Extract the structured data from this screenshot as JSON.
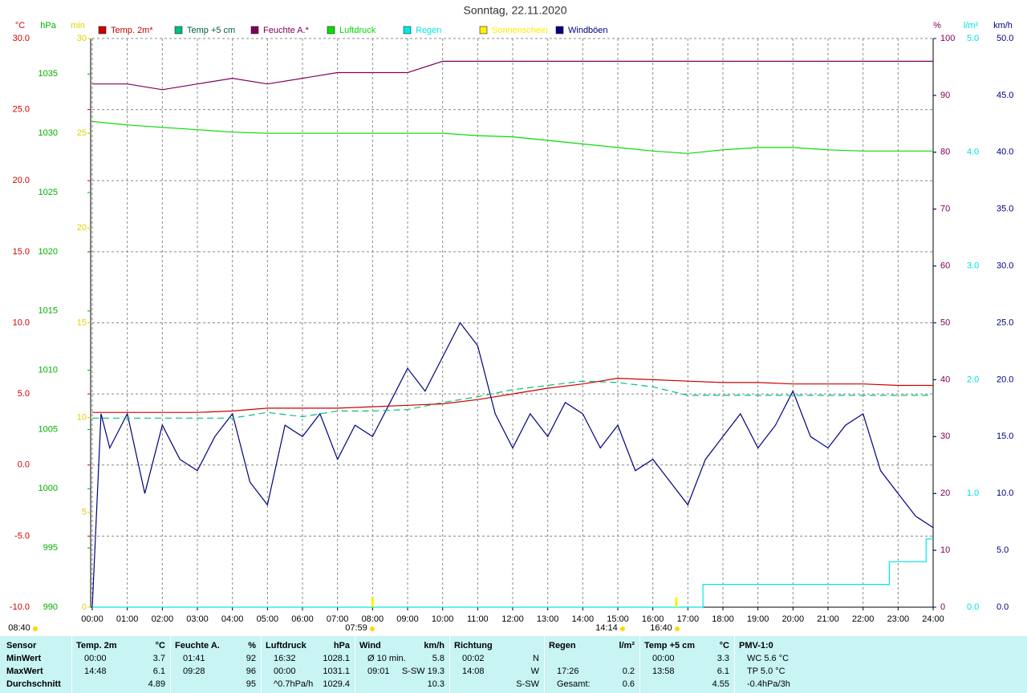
{
  "chart_data": {
    "type": "line",
    "title": "Sonntag, 22.11.2020",
    "xlim": [
      0,
      24
    ],
    "xticks": [
      {
        "value": 0,
        "label": "00:00"
      },
      {
        "value": 1,
        "label": "01:00"
      },
      {
        "value": 2,
        "label": "02:00"
      },
      {
        "value": 3,
        "label": "03:00"
      },
      {
        "value": 4,
        "label": "04:00"
      },
      {
        "value": 5,
        "label": "05:00"
      },
      {
        "value": 6,
        "label": "06:00"
      },
      {
        "value": 7,
        "label": "07:00"
      },
      {
        "value": 8,
        "label": "08:00"
      },
      {
        "value": 9,
        "label": "09:00"
      },
      {
        "value": 10,
        "label": "10:00"
      },
      {
        "value": 11,
        "label": "11:00"
      },
      {
        "value": 12,
        "label": "12:00"
      },
      {
        "value": 13,
        "label": "13:00"
      },
      {
        "value": 14,
        "label": "14:00"
      },
      {
        "value": 15,
        "label": "15:00"
      },
      {
        "value": 16,
        "label": "16:00"
      },
      {
        "value": 17,
        "label": "17:00"
      },
      {
        "value": 18,
        "label": "18:00"
      },
      {
        "value": 19,
        "label": "19:00"
      },
      {
        "value": 20,
        "label": "20:00"
      },
      {
        "value": 21,
        "label": "21:00"
      },
      {
        "value": 22,
        "label": "22:00"
      },
      {
        "value": 23,
        "label": "23:00"
      },
      {
        "value": 24,
        "label": "24:00"
      }
    ],
    "grid": true,
    "axes": [
      {
        "unit": "°C",
        "color": "#d00000",
        "side": "left",
        "lim": [
          -10,
          30
        ],
        "ticks": [
          {
            "value": -10,
            "label": "-10.0"
          },
          {
            "value": -5,
            "label": "-5.0"
          },
          {
            "value": 0,
            "label": "0.0"
          },
          {
            "value": 5,
            "label": "5.0"
          },
          {
            "value": 10,
            "label": "10.0"
          },
          {
            "value": 15,
            "label": "15.0"
          },
          {
            "value": 20,
            "label": "20.0"
          },
          {
            "value": 25,
            "label": "25.0"
          },
          {
            "value": 30,
            "label": "30.0"
          }
        ]
      },
      {
        "unit": "hPa",
        "color": "#00b000",
        "side": "left",
        "lim": [
          990,
          1038
        ],
        "ticks": [
          990,
          995,
          1000,
          1005,
          1010,
          1015,
          1020,
          1025,
          1030,
          1035
        ]
      },
      {
        "unit": "min",
        "color": "#e0d000",
        "side": "left",
        "lim": [
          0,
          30
        ],
        "ticks": [
          0,
          5,
          10,
          15,
          20,
          25,
          30
        ]
      },
      {
        "unit": "%",
        "color": "#800060",
        "side": "right",
        "lim": [
          0,
          100
        ],
        "ticks": [
          0,
          10,
          20,
          30,
          40,
          50,
          60,
          70,
          80,
          90,
          100
        ]
      },
      {
        "unit": "l/m²",
        "color": "#00e0e0",
        "side": "right",
        "lim": [
          0,
          5
        ],
        "ticks": [
          {
            "value": 0,
            "label": "0.0"
          },
          {
            "value": 1,
            "label": "1.0"
          },
          {
            "value": 2,
            "label": "2.0"
          },
          {
            "value": 3,
            "label": "3.0"
          },
          {
            "value": 4,
            "label": "4.0"
          },
          {
            "value": 5,
            "label": "5.0"
          }
        ]
      },
      {
        "unit": "km/h",
        "color": "#000080",
        "side": "right",
        "lim": [
          0,
          50
        ],
        "ticks": [
          {
            "value": 0,
            "label": "0.0"
          },
          {
            "value": 5,
            "label": "5.0"
          },
          {
            "value": 10,
            "label": "10.0"
          },
          {
            "value": 15,
            "label": "15.0"
          },
          {
            "value": 20,
            "label": "20.0"
          },
          {
            "value": 25,
            "label": "25.0"
          },
          {
            "value": 30,
            "label": "30.0"
          },
          {
            "value": 35,
            "label": "35.0"
          },
          {
            "value": 40,
            "label": "40.0"
          },
          {
            "value": 45,
            "label": "45.0"
          },
          {
            "value": 50,
            "label": "50.0"
          }
        ]
      }
    ],
    "series": [
      {
        "name": "Windböen",
        "color": "#000080",
        "axis": 5,
        "x": [
          0,
          0.25,
          0.5,
          1,
          1.5,
          2,
          2.5,
          3,
          3.5,
          4,
          4.5,
          5,
          5.5,
          6,
          6.5,
          7,
          7.5,
          8,
          8.5,
          9,
          9.5,
          10,
          10.5,
          11,
          11.5,
          12,
          12.5,
          13,
          13.5,
          14,
          14.5,
          15,
          15.5,
          16,
          16.5,
          17,
          17.5,
          18,
          18.5,
          19,
          19.5,
          20,
          20.5,
          21,
          21.5,
          22,
          22.5,
          23,
          23.5,
          24
        ],
        "values": [
          0,
          17,
          14,
          17,
          10,
          16,
          13,
          12,
          15,
          17,
          11,
          9,
          16,
          15,
          17,
          13,
          16,
          15,
          18,
          21,
          19,
          22,
          25,
          23,
          17,
          14,
          17,
          15,
          18,
          17,
          14,
          16,
          12,
          13,
          11,
          9,
          13,
          15,
          17,
          14,
          16,
          19,
          15,
          14,
          16,
          17,
          12,
          10,
          8,
          7
        ]
      },
      {
        "name": "Temp +5 cm",
        "color": "#00c080",
        "axis": 0,
        "dashed": true,
        "x": [
          0,
          1,
          2,
          3,
          4,
          5,
          6,
          7,
          8,
          9,
          10,
          11,
          12,
          13,
          14,
          15,
          16,
          17,
          18,
          19,
          20,
          21,
          22,
          23,
          24
        ],
        "values": [
          3.3,
          3.3,
          3.3,
          3.3,
          3.3,
          3.7,
          3.4,
          3.8,
          3.8,
          3.9,
          4.4,
          4.8,
          5.3,
          5.6,
          5.9,
          5.8,
          5.5,
          4.9,
          4.9,
          4.9,
          4.9,
          4.9,
          4.9,
          4.9,
          4.9
        ]
      },
      {
        "name": "Temp. 2m*",
        "color": "#cc0000",
        "axis": 0,
        "x": [
          0,
          1,
          2,
          3,
          4,
          5,
          6,
          7,
          8,
          9,
          10,
          11,
          12,
          13,
          14,
          15,
          16,
          17,
          18,
          19,
          20,
          21,
          22,
          23,
          24
        ],
        "values": [
          3.7,
          3.7,
          3.7,
          3.7,
          3.8,
          4.0,
          4.0,
          4.0,
          4.1,
          4.2,
          4.3,
          4.6,
          5.0,
          5.4,
          5.7,
          6.1,
          6.0,
          5.9,
          5.8,
          5.8,
          5.7,
          5.7,
          5.7,
          5.6,
          5.6
        ]
      },
      {
        "name": "Feuchte A.*",
        "color": "#800060",
        "axis": 3,
        "x": [
          0,
          1,
          2,
          3,
          4,
          5,
          6,
          7,
          8,
          9,
          10,
          11,
          12,
          13,
          14,
          15,
          16,
          17,
          18,
          19,
          20,
          21,
          22,
          23,
          24
        ],
        "values": [
          92,
          92,
          91,
          92,
          93,
          92,
          93,
          94,
          94,
          94,
          96,
          96,
          96,
          96,
          96,
          96,
          96,
          96,
          96,
          96,
          96,
          96,
          96,
          96,
          96
        ]
      },
      {
        "name": "Luftdruck",
        "color": "#00dd00",
        "axis": 1,
        "x": [
          0,
          1,
          2,
          3,
          4,
          5,
          6,
          7,
          8,
          9,
          10,
          11,
          12,
          13,
          14,
          15,
          16,
          17,
          18,
          19,
          20,
          21,
          22,
          23,
          24
        ],
        "values": [
          1031.0,
          1030.7,
          1030.5,
          1030.3,
          1030.1,
          1030.0,
          1030.0,
          1030.0,
          1030.0,
          1030.0,
          1030.0,
          1029.8,
          1029.7,
          1029.4,
          1029.1,
          1028.8,
          1028.5,
          1028.3,
          1028.6,
          1028.8,
          1028.8,
          1028.6,
          1028.5,
          1028.5,
          1028.5
        ]
      },
      {
        "name": "Regen",
        "color": "#00e8e8",
        "axis": 4,
        "x": [
          0,
          17.43,
          17.43,
          22.75,
          22.75,
          23.8,
          23.8,
          24
        ],
        "values": [
          0,
          0,
          0.2,
          0.2,
          0.4,
          0.4,
          0.6,
          0.6
        ]
      },
      {
        "name": "Sonnenschein",
        "color": "#ffee00",
        "axis": 2,
        "x": [
          8,
          16.67
        ],
        "values": [
          0,
          0
        ]
      }
    ],
    "legend_order": [
      2,
      1,
      3,
      4,
      5,
      6,
      0
    ],
    "annotations": [
      "08:40",
      "07:59",
      "14:14",
      "16:40"
    ]
  },
  "summary_table": {
    "columns": [
      {
        "title": "Sensor"
      },
      {
        "title": "Temp. 2m",
        "unit": "°C"
      },
      {
        "title": "Feuchte A.",
        "unit": "%"
      },
      {
        "title": "Luftdruck",
        "unit": "hPa"
      },
      {
        "title": "Wind",
        "unit": "km/h"
      },
      {
        "title": "Richtung"
      },
      {
        "title": "Regen",
        "unit": "l/m²"
      },
      {
        "title": "Temp +5 cm",
        "unit": "°C"
      },
      {
        "title": "PMV-1:0"
      }
    ],
    "rows": [
      {
        "label": "MinWert",
        "cells": [
          {
            "left": "00:00",
            "right": "3.7"
          },
          {
            "left": "01:41",
            "right": "92"
          },
          {
            "left": "16:32",
            "right": "1028.1"
          },
          {
            "left": "Ø 10 min.",
            "right": "5.8"
          },
          {
            "left": "00:02",
            "right": "N"
          },
          {},
          {
            "left": "00:00",
            "right": "3.3"
          },
          {
            "left": "WC 5.6 °C"
          }
        ]
      },
      {
        "label": "MaxWert",
        "cells": [
          {
            "left": "14:48",
            "right": "6.1"
          },
          {
            "left": "09:28",
            "right": "96"
          },
          {
            "left": "00:00",
            "right": "1031.1"
          },
          {
            "left": "09:01",
            "right": "S-SW 19.3"
          },
          {
            "left": "14:08",
            "right": "W"
          },
          {
            "left": "17:26",
            "right": "0.2"
          },
          {
            "left": "13:58",
            "right": "6.1"
          },
          {
            "left": "TP 5.0 °C"
          }
        ]
      },
      {
        "label": "Durchschnitt",
        "cells": [
          {
            "right": "4.89"
          },
          {
            "right": "95"
          },
          {
            "left": "^0.7hPa/h",
            "right": "1029.4"
          },
          {
            "right": "10.3"
          },
          {
            "right": "S-SW"
          },
          {
            "left": "Gesamt:",
            "right": "0.6"
          },
          {
            "right": "4.55"
          },
          {
            "left": "-0.4hPa/3h"
          }
        ]
      }
    ]
  }
}
